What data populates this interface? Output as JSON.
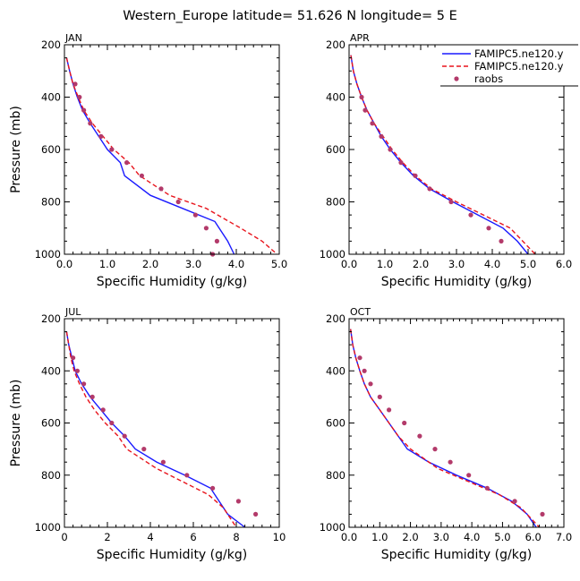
{
  "figure": {
    "title": "Western_Europe  latitude= 51.626 N longitude= 5 E",
    "colors": {
      "model1": "#1a1aff",
      "model2": "#e8141c",
      "obs": "#b33a6a"
    }
  },
  "legend": {
    "entries": [
      "FAMIPC5.ne120.y",
      "FAMIPC5.ne120.y",
      "raobs"
    ]
  },
  "chart_data": [
    {
      "type": "line",
      "title": "JAN",
      "xlabel": "Specific Humidity (g/kg)",
      "ylabel": "Pressure (mb)",
      "xlim": [
        0,
        5
      ],
      "ylim": [
        1000,
        200
      ],
      "xticks": [
        "0.0",
        "1.0",
        "2.0",
        "3.0",
        "4.0",
        "5.0"
      ],
      "yticks": [
        "200",
        "400",
        "600",
        "800",
        "1000"
      ],
      "series": [
        {
          "name": "FAMIPC5.ne120.y",
          "style": "solid",
          "points": [
            [
              0.05,
              250
            ],
            [
              0.12,
              300
            ],
            [
              0.2,
              350
            ],
            [
              0.3,
              400
            ],
            [
              0.42,
              450
            ],
            [
              0.6,
              500
            ],
            [
              0.8,
              550
            ],
            [
              1.0,
              600
            ],
            [
              1.3,
              650
            ],
            [
              1.4,
              700
            ],
            [
              2.0,
              775
            ],
            [
              2.75,
              825
            ],
            [
              3.5,
              875
            ],
            [
              3.8,
              950
            ],
            [
              3.95,
              1000
            ]
          ]
        },
        {
          "name": "FAMIPC5.ne120.y",
          "style": "dashed",
          "points": [
            [
              0.05,
              250
            ],
            [
              0.12,
              300
            ],
            [
              0.2,
              350
            ],
            [
              0.32,
              400
            ],
            [
              0.45,
              450
            ],
            [
              0.65,
              500
            ],
            [
              0.9,
              550
            ],
            [
              1.15,
              600
            ],
            [
              1.5,
              650
            ],
            [
              1.75,
              700
            ],
            [
              2.45,
              775
            ],
            [
              3.3,
              825
            ],
            [
              4.1,
              900
            ],
            [
              4.6,
              950
            ],
            [
              4.95,
              1000
            ]
          ]
        },
        {
          "name": "raobs",
          "style": "markers",
          "points": [
            [
              0.25,
              350
            ],
            [
              0.35,
              400
            ],
            [
              0.45,
              450
            ],
            [
              0.6,
              500
            ],
            [
              0.85,
              550
            ],
            [
              1.1,
              600
            ],
            [
              1.45,
              650
            ],
            [
              1.8,
              700
            ],
            [
              2.25,
              750
            ],
            [
              2.65,
              800
            ],
            [
              3.05,
              850
            ],
            [
              3.3,
              900
            ],
            [
              3.55,
              950
            ],
            [
              3.45,
              1000
            ]
          ]
        }
      ]
    },
    {
      "type": "line",
      "title": "APR",
      "xlabel": "Specific Humidity (g/kg)",
      "ylabel": "",
      "xlim": [
        0,
        6
      ],
      "ylim": [
        1000,
        200
      ],
      "xticks": [
        "0.0",
        "1.0",
        "2.0",
        "3.0",
        "4.0",
        "5.0",
        "6.0"
      ],
      "yticks": [
        "200",
        "400",
        "600",
        "800",
        "1000"
      ],
      "series": [
        {
          "name": "FAMIPC5.ne120.y",
          "style": "solid",
          "points": [
            [
              0.05,
              240
            ],
            [
              0.12,
              300
            ],
            [
              0.22,
              350
            ],
            [
              0.35,
              400
            ],
            [
              0.5,
              450
            ],
            [
              0.7,
              500
            ],
            [
              0.9,
              550
            ],
            [
              1.15,
              600
            ],
            [
              1.45,
              650
            ],
            [
              1.8,
              700
            ],
            [
              2.25,
              750
            ],
            [
              2.9,
              800
            ],
            [
              3.6,
              850
            ],
            [
              4.3,
              900
            ],
            [
              4.7,
              950
            ],
            [
              5.0,
              1000
            ]
          ]
        },
        {
          "name": "FAMIPC5.ne120.y",
          "style": "dashed",
          "points": [
            [
              0.05,
              240
            ],
            [
              0.12,
              300
            ],
            [
              0.22,
              350
            ],
            [
              0.35,
              400
            ],
            [
              0.5,
              450
            ],
            [
              0.7,
              500
            ],
            [
              0.95,
              550
            ],
            [
              1.2,
              600
            ],
            [
              1.5,
              650
            ],
            [
              1.85,
              700
            ],
            [
              2.3,
              750
            ],
            [
              3.0,
              800
            ],
            [
              3.75,
              850
            ],
            [
              4.5,
              900
            ],
            [
              4.85,
              950
            ],
            [
              5.2,
              1000
            ]
          ]
        },
        {
          "name": "raobs",
          "style": "markers",
          "points": [
            [
              0.35,
              400
            ],
            [
              0.45,
              450
            ],
            [
              0.65,
              500
            ],
            [
              0.9,
              550
            ],
            [
              1.15,
              600
            ],
            [
              1.45,
              650
            ],
            [
              1.85,
              700
            ],
            [
              2.25,
              750
            ],
            [
              2.85,
              800
            ],
            [
              3.4,
              850
            ],
            [
              3.9,
              900
            ],
            [
              4.25,
              950
            ]
          ]
        }
      ]
    },
    {
      "type": "line",
      "title": "JUL",
      "xlabel": "Specific Humidity (g/kg)",
      "ylabel": "Pressure (mb)",
      "xlim": [
        0,
        10
      ],
      "ylim": [
        1000,
        200
      ],
      "xticks": [
        "0",
        "2",
        "4",
        "6",
        "8",
        "10"
      ],
      "yticks": [
        "200",
        "400",
        "600",
        "800",
        "1000"
      ],
      "series": [
        {
          "name": "FAMIPC5.ne120.y",
          "style": "solid",
          "points": [
            [
              0.1,
              250
            ],
            [
              0.2,
              300
            ],
            [
              0.35,
              350
            ],
            [
              0.5,
              400
            ],
            [
              0.8,
              450
            ],
            [
              1.2,
              500
            ],
            [
              1.7,
              550
            ],
            [
              2.2,
              600
            ],
            [
              2.8,
              650
            ],
            [
              3.3,
              700
            ],
            [
              4.3,
              750
            ],
            [
              5.6,
              800
            ],
            [
              6.8,
              850
            ],
            [
              7.6,
              950
            ],
            [
              8.4,
              1000
            ]
          ]
        },
        {
          "name": "FAMIPC5.ne120.y",
          "style": "dashed",
          "points": [
            [
              0.1,
              250
            ],
            [
              0.2,
              300
            ],
            [
              0.3,
              350
            ],
            [
              0.45,
              400
            ],
            [
              0.7,
              450
            ],
            [
              1.0,
              500
            ],
            [
              1.4,
              550
            ],
            [
              1.9,
              600
            ],
            [
              2.5,
              650
            ],
            [
              2.9,
              700
            ],
            [
              4.3,
              775
            ],
            [
              5.5,
              825
            ],
            [
              6.7,
              875
            ],
            [
              7.4,
              925
            ],
            [
              8.0,
              1000
            ]
          ]
        },
        {
          "name": "raobs",
          "style": "markers",
          "points": [
            [
              0.4,
              350
            ],
            [
              0.6,
              400
            ],
            [
              0.9,
              450
            ],
            [
              1.3,
              500
            ],
            [
              1.8,
              550
            ],
            [
              2.2,
              600
            ],
            [
              2.8,
              650
            ],
            [
              3.7,
              700
            ],
            [
              4.6,
              750
            ],
            [
              5.7,
              800
            ],
            [
              6.9,
              850
            ],
            [
              8.1,
              900
            ],
            [
              8.9,
              950
            ]
          ]
        }
      ]
    },
    {
      "type": "line",
      "title": "OCT",
      "xlabel": "Specific Humidity (g/kg)",
      "ylabel": "",
      "xlim": [
        0,
        7
      ],
      "ylim": [
        1000,
        200
      ],
      "xticks": [
        "0.0",
        "1.0",
        "2.0",
        "3.0",
        "4.0",
        "5.0",
        "6.0",
        "7.0"
      ],
      "yticks": [
        "200",
        "400",
        "600",
        "800",
        "1000"
      ],
      "series": [
        {
          "name": "FAMIPC5.ne120.y",
          "style": "solid",
          "points": [
            [
              0.05,
              240
            ],
            [
              0.12,
              300
            ],
            [
              0.22,
              350
            ],
            [
              0.35,
              400
            ],
            [
              0.5,
              450
            ],
            [
              0.7,
              500
            ],
            [
              1.0,
              550
            ],
            [
              1.3,
              600
            ],
            [
              1.6,
              650
            ],
            [
              1.9,
              700
            ],
            [
              2.6,
              750
            ],
            [
              3.5,
              800
            ],
            [
              4.5,
              850
            ],
            [
              5.3,
              900
            ],
            [
              5.8,
              950
            ],
            [
              6.1,
              1000
            ]
          ]
        },
        {
          "name": "FAMIPC5.ne120.y",
          "style": "dashed",
          "points": [
            [
              0.05,
              240
            ],
            [
              0.12,
              300
            ],
            [
              0.22,
              350
            ],
            [
              0.35,
              400
            ],
            [
              0.5,
              450
            ],
            [
              0.7,
              500
            ],
            [
              1.0,
              550
            ],
            [
              1.3,
              600
            ],
            [
              1.6,
              650
            ],
            [
              2.0,
              700
            ],
            [
              2.9,
              775
            ],
            [
              3.9,
              825
            ],
            [
              4.9,
              875
            ],
            [
              5.6,
              925
            ],
            [
              6.0,
              975
            ],
            [
              6.2,
              1000
            ]
          ]
        },
        {
          "name": "raobs",
          "style": "markers",
          "points": [
            [
              0.35,
              350
            ],
            [
              0.5,
              400
            ],
            [
              0.7,
              450
            ],
            [
              1.0,
              500
            ],
            [
              1.3,
              550
            ],
            [
              1.8,
              600
            ],
            [
              2.3,
              650
            ],
            [
              2.8,
              700
            ],
            [
              3.3,
              750
            ],
            [
              3.9,
              800
            ],
            [
              4.5,
              850
            ],
            [
              5.4,
              900
            ],
            [
              6.3,
              950
            ]
          ]
        }
      ]
    }
  ]
}
